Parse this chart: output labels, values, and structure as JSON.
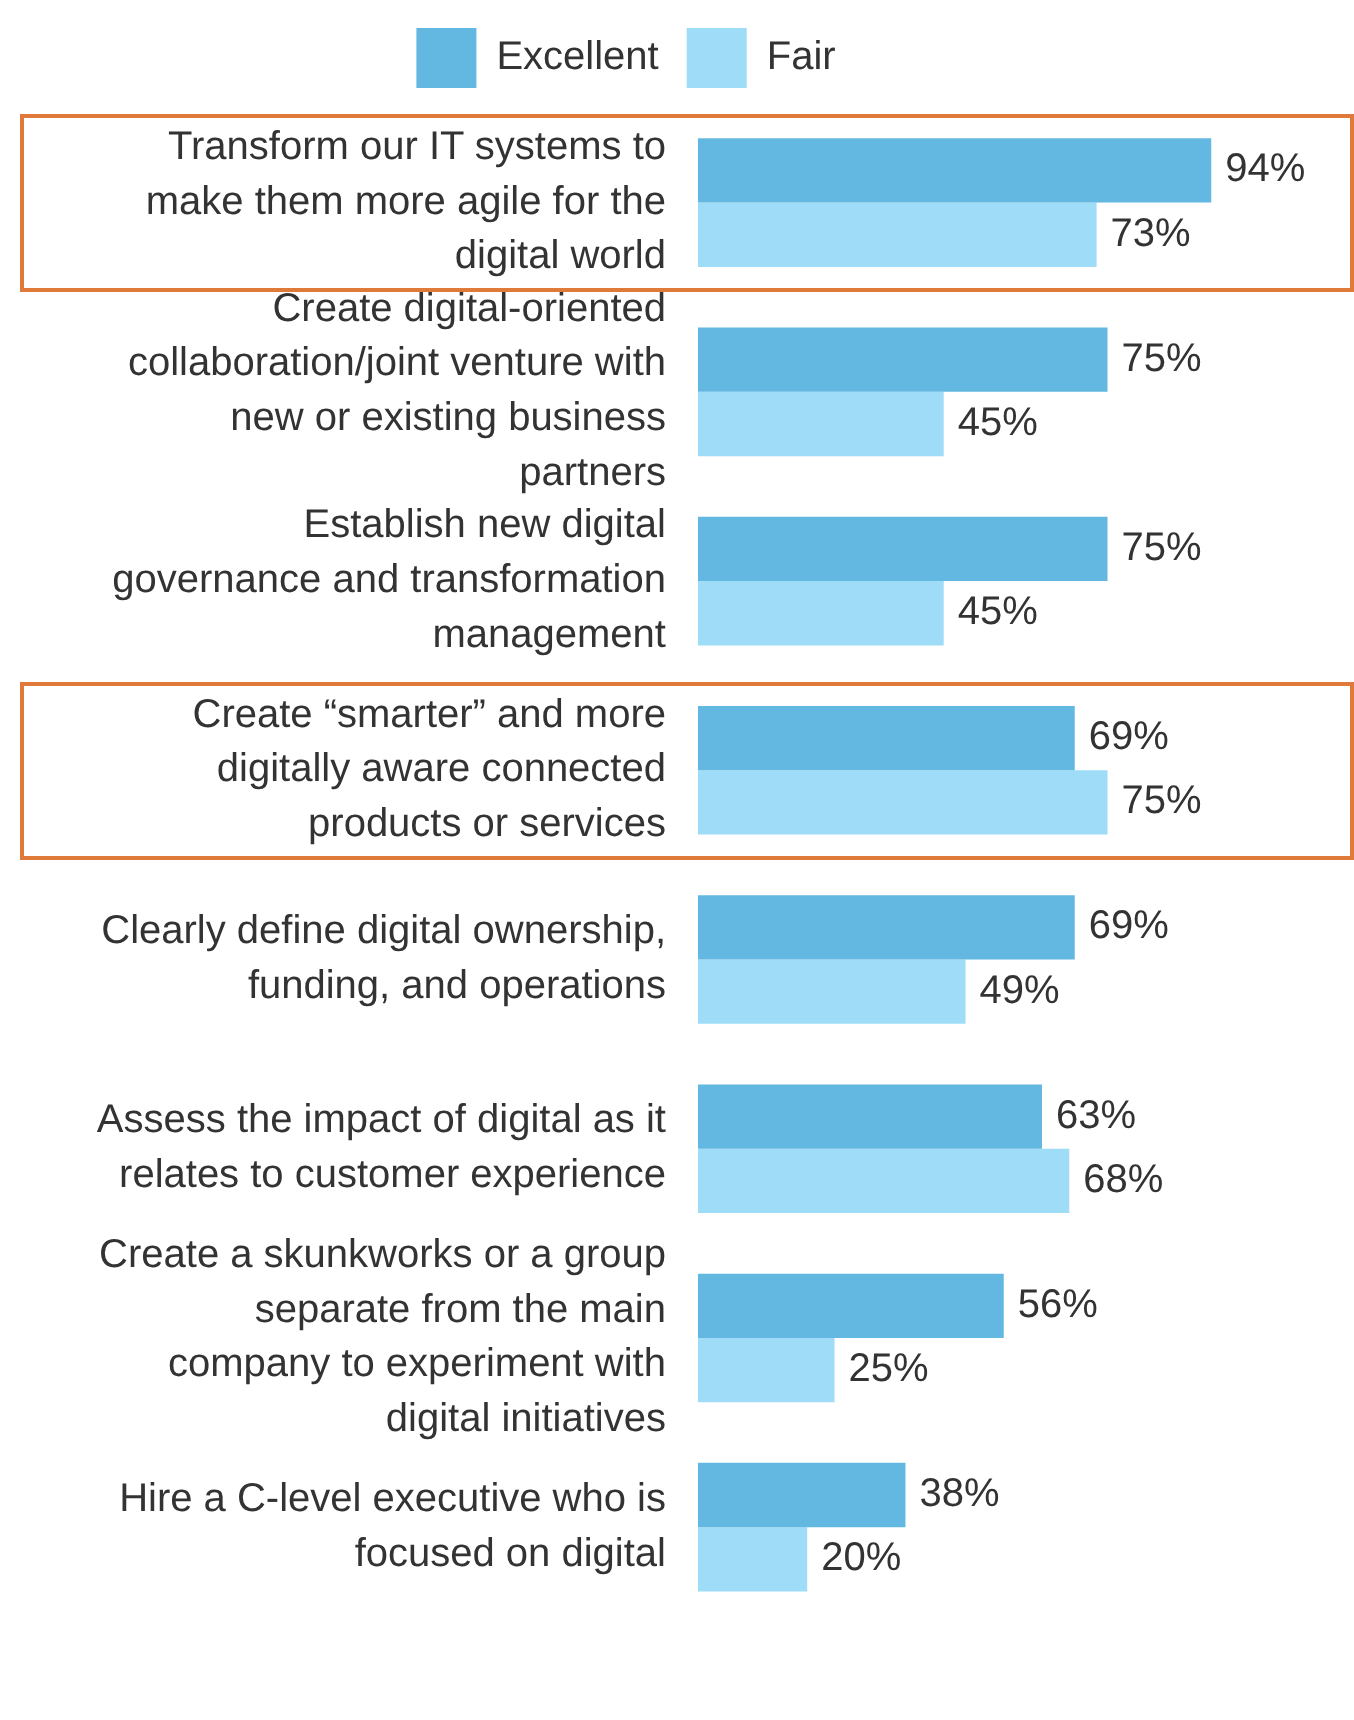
{
  "chart_data": {
    "type": "bar",
    "orientation": "horizontal",
    "categories": [
      "Transform our IT systems to make them more agile for the digital world",
      "Create digital-oriented collaboration/joint venture with new or existing business partners",
      "Establish new digital governance and transformation management",
      "Create “smarter” and more digitally aware connected products or services",
      "Clearly define digital ownership, funding, and operations",
      "Assess the impact of digital as it relates to customer experience",
      "Create a skunkworks or a group separate from the main company to experiment with digital initiatives",
      "Hire a C-level executive who is focused on digital"
    ],
    "series": [
      {
        "name": "Excellent",
        "color": "#62b8e0",
        "values": [
          94,
          75,
          75,
          69,
          69,
          63,
          56,
          38
        ],
        "value_labels": [
          "94%",
          "75%",
          "75%",
          "69%",
          "69%",
          "63%",
          "56%",
          "38%"
        ]
      },
      {
        "name": "Fair",
        "color": "#9edcf7",
        "values": [
          73,
          45,
          45,
          75,
          49,
          68,
          25,
          20
        ],
        "value_labels": [
          "73%",
          "45%",
          "45%",
          "75%",
          "49%",
          "68%",
          "25%",
          "20%"
        ]
      }
    ],
    "legend": "top"
  }
}
